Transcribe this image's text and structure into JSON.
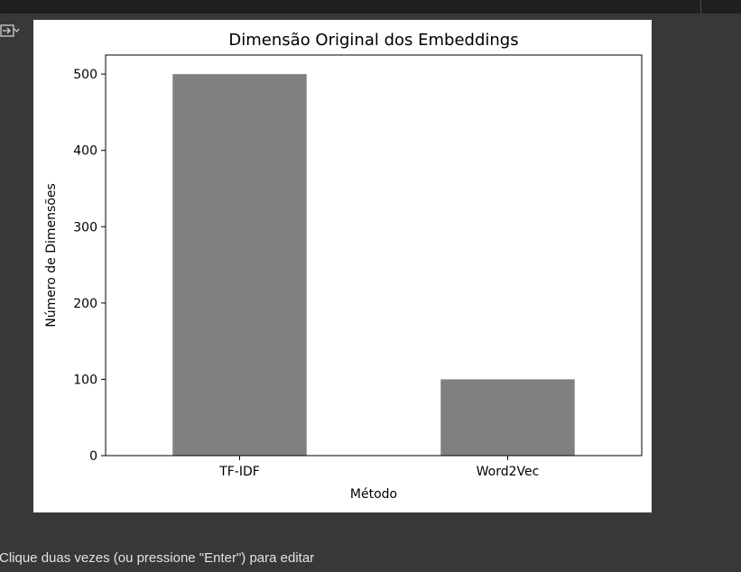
{
  "notebook": {
    "edit_hint": "Clique duas vezes (ou pressione \"Enter\") para editar",
    "output_icon": "output-toggle-icon"
  },
  "chart_data": {
    "type": "bar",
    "title": "Dimensão Original dos Embeddings",
    "xlabel": "Método",
    "ylabel": "Número de Dimensões",
    "categories": [
      "TF-IDF",
      "Word2Vec"
    ],
    "values": [
      500,
      100
    ],
    "ylim": [
      0,
      525
    ],
    "yticks": [
      0,
      100,
      200,
      300,
      400,
      500
    ],
    "grid": false,
    "legend": "none",
    "bar_color": "#808080"
  },
  "colors": {
    "page_background": "#383838",
    "top_bar": "#1f1f1f",
    "text": "#e3e3e3"
  }
}
